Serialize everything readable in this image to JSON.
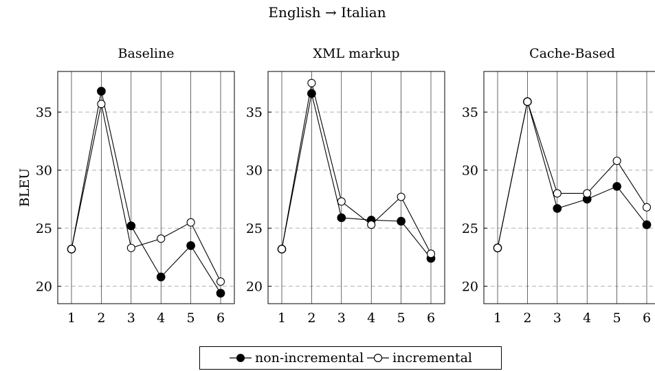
{
  "figure_title": "English → Italian",
  "legend": {
    "non_incremental": "non-incremental",
    "incremental": "incremental"
  },
  "colors": {
    "line": "#000000",
    "grid": "#b0b0b0",
    "filled_marker": "#000000",
    "open_marker": "#ffffff"
  },
  "chart_data": [
    {
      "type": "line",
      "title": "Baseline",
      "xlabel": "",
      "ylabel": "BLEU",
      "x": [
        1,
        2,
        3,
        4,
        5,
        6
      ],
      "xticks": [
        "1",
        "2",
        "3",
        "4",
        "5",
        "6"
      ],
      "yticks": [
        "20",
        "25",
        "30",
        "35"
      ],
      "ylim": [
        18.5,
        38.5
      ],
      "grid": "horizontal dashed",
      "series": [
        {
          "name": "non-incremental",
          "marker": "filled-circle",
          "values": [
            23.2,
            36.8,
            25.2,
            20.8,
            23.5,
            19.4
          ]
        },
        {
          "name": "incremental",
          "marker": "open-circle",
          "values": [
            23.2,
            35.7,
            23.3,
            24.1,
            25.5,
            20.4
          ]
        }
      ]
    },
    {
      "type": "line",
      "title": "XML markup",
      "xlabel": "",
      "ylabel": "",
      "x": [
        1,
        2,
        3,
        4,
        5,
        6
      ],
      "xticks": [
        "1",
        "2",
        "3",
        "4",
        "5",
        "6"
      ],
      "yticks": [
        "20",
        "25",
        "30",
        "35"
      ],
      "ylim": [
        18.5,
        38.5
      ],
      "grid": "horizontal dashed",
      "series": [
        {
          "name": "non-incremental",
          "marker": "filled-circle",
          "values": [
            23.2,
            36.6,
            25.9,
            25.7,
            25.6,
            22.4
          ]
        },
        {
          "name": "incremental",
          "marker": "open-circle",
          "values": [
            23.2,
            37.5,
            27.3,
            25.3,
            27.7,
            22.8
          ]
        }
      ]
    },
    {
      "type": "line",
      "title": "Cache-Based",
      "xlabel": "",
      "ylabel": "",
      "x": [
        1,
        2,
        3,
        4,
        5,
        6
      ],
      "xticks": [
        "1",
        "2",
        "3",
        "4",
        "5",
        "6"
      ],
      "yticks": [
        "20",
        "25",
        "30",
        "35"
      ],
      "ylim": [
        18.5,
        38.5
      ],
      "grid": "horizontal dashed",
      "series": [
        {
          "name": "non-incremental",
          "marker": "filled-circle",
          "values": [
            23.3,
            35.9,
            26.7,
            27.5,
            28.6,
            25.3
          ]
        },
        {
          "name": "incremental",
          "marker": "open-circle",
          "values": [
            23.3,
            35.9,
            28.0,
            28.0,
            30.8,
            26.8
          ]
        }
      ]
    }
  ]
}
